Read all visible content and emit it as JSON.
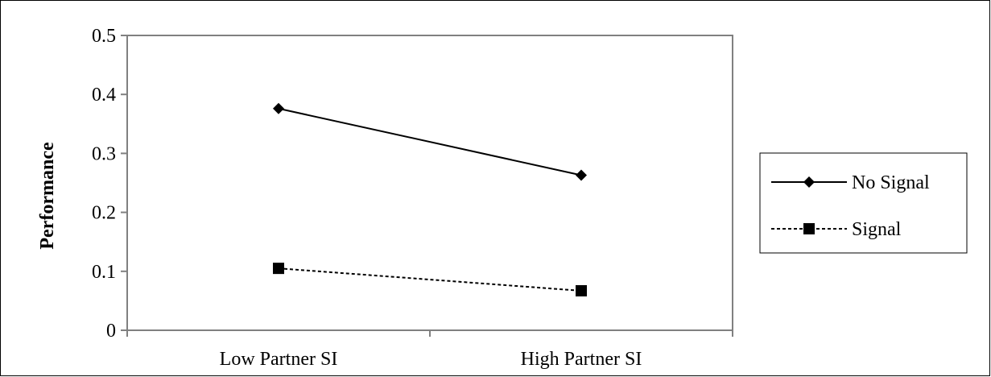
{
  "chart_data": {
    "type": "line",
    "title": "",
    "xlabel": "",
    "ylabel": "Performance",
    "categories": [
      "Low Partner SI",
      "High Partner SI"
    ],
    "ylim": [
      0,
      0.5
    ],
    "yticks": [
      "0",
      "0.1",
      "0.2",
      "0.3",
      "0.4",
      "0.5"
    ],
    "grid": false,
    "legend_position": "right",
    "series": [
      {
        "name": "No Signal",
        "values": [
          0.376,
          0.263
        ],
        "marker": "diamond",
        "line_style": "solid",
        "color": "#000000"
      },
      {
        "name": "Signal",
        "values": [
          0.105,
          0.067
        ],
        "marker": "square",
        "line_style": "dashed",
        "color": "#000000"
      }
    ]
  }
}
